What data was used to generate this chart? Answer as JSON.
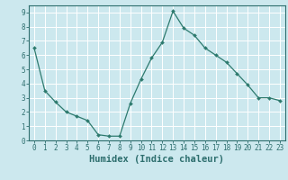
{
  "x": [
    0,
    1,
    2,
    3,
    4,
    5,
    6,
    7,
    8,
    9,
    10,
    11,
    12,
    13,
    14,
    15,
    16,
    17,
    18,
    19,
    20,
    21,
    22,
    23
  ],
  "y": [
    6.5,
    3.5,
    2.7,
    2.0,
    1.7,
    1.4,
    0.4,
    0.3,
    0.3,
    2.6,
    4.3,
    5.8,
    6.9,
    9.1,
    7.9,
    7.4,
    6.5,
    6.0,
    5.5,
    4.7,
    3.9,
    3.0,
    3.0,
    2.8
  ],
  "line_color": "#2d7a6e",
  "marker": "D",
  "marker_size": 2.0,
  "bg_color": "#cce8ee",
  "grid_color": "#ffffff",
  "xlabel": "Humidex (Indice chaleur)",
  "xlim": [
    -0.5,
    23.5
  ],
  "ylim": [
    0,
    9.5
  ],
  "yticks": [
    0,
    1,
    2,
    3,
    4,
    5,
    6,
    7,
    8,
    9
  ],
  "xticks": [
    0,
    1,
    2,
    3,
    4,
    5,
    6,
    7,
    8,
    9,
    10,
    11,
    12,
    13,
    14,
    15,
    16,
    17,
    18,
    19,
    20,
    21,
    22,
    23
  ],
  "font_color": "#2d6e6e",
  "tick_fontsize": 5.5,
  "label_fontsize": 7.5,
  "linewidth": 0.9
}
